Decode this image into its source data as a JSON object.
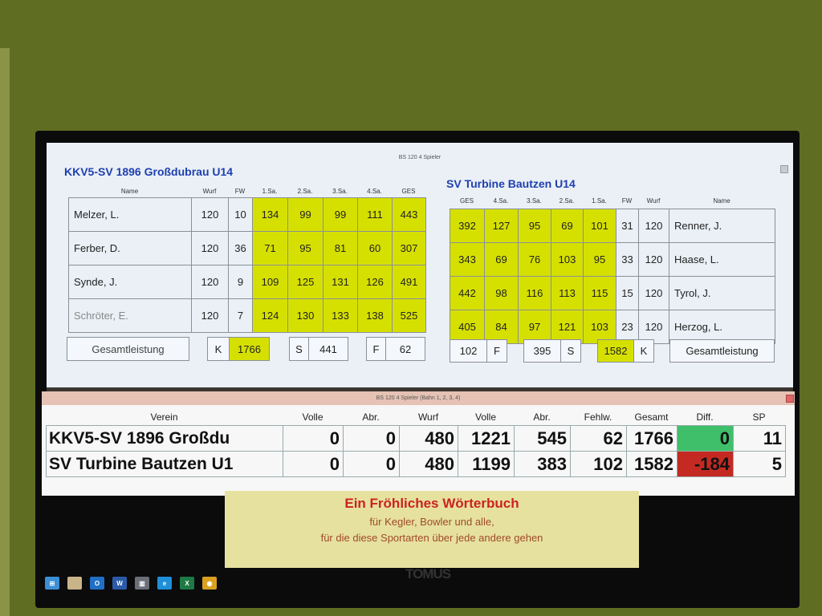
{
  "window_top": {
    "title": "BS 120 4 Spieler"
  },
  "home": {
    "team": "KKV5-SV 1896 Großdubrau U14",
    "headers": [
      "Name",
      "Wurf",
      "FW",
      "1.Sa.",
      "2.Sa.",
      "3.Sa.",
      "4.Sa.",
      "GES"
    ],
    "rows": [
      [
        "Melzer, L.",
        "120",
        "10",
        "134",
        "99",
        "99",
        "111",
        "443"
      ],
      [
        "Ferber, D.",
        "120",
        "36",
        "71",
        "95",
        "81",
        "60",
        "307"
      ],
      [
        "Synde, J.",
        "120",
        "9",
        "109",
        "125",
        "131",
        "126",
        "491"
      ],
      [
        "Schröter, E.",
        "120",
        "7",
        "124",
        "130",
        "133",
        "138",
        "525"
      ]
    ],
    "total_label": "Gesamtleistung",
    "k_label": "K",
    "k": "1766",
    "s_label": "S",
    "s": "441",
    "f_label": "F",
    "f": "62"
  },
  "away": {
    "team": "SV Turbine Bautzen U14",
    "headers": [
      "GES",
      "4.Sa.",
      "3.Sa.",
      "2.Sa.",
      "1.Sa.",
      "FW",
      "Wurf",
      "Name"
    ],
    "rows": [
      [
        "392",
        "127",
        "95",
        "69",
        "101",
        "31",
        "120",
        "Renner, J."
      ],
      [
        "343",
        "69",
        "76",
        "103",
        "95",
        "33",
        "120",
        "Haase, L."
      ],
      [
        "442",
        "98",
        "116",
        "113",
        "115",
        "15",
        "120",
        "Tyrol, J."
      ],
      [
        "405",
        "84",
        "97",
        "121",
        "103",
        "23",
        "120",
        "Herzog, L."
      ]
    ],
    "total_label": "Gesamtleistung",
    "k_label": "K",
    "k": "1582",
    "s_label": "S",
    "s": "395",
    "f_label": "F",
    "f": "102"
  },
  "window_bottom": {
    "title": "BS 120 4 Spieler (Bahn 1, 2, 3, 4)",
    "headers": [
      "Verein",
      "Volle",
      "Abr.",
      "Wurf",
      "Volle",
      "Abr.",
      "Fehlw.",
      "Gesamt",
      "Diff.",
      "SP"
    ],
    "rows": [
      [
        "KKV5-SV 1896 Großdu",
        "0",
        "0",
        "480",
        "1221",
        "545",
        "62",
        "1766",
        "0",
        "11"
      ],
      [
        "SV Turbine Bautzen U1",
        "0",
        "0",
        "480",
        "1199",
        "383",
        "102",
        "1582",
        "-184",
        "5"
      ]
    ],
    "diff_colors": [
      "#3fbf6a",
      "#c42a22"
    ]
  },
  "banner": {
    "title": "Ein Fröhliches Wörterbuch",
    "line1": "für Kegler, Bowler und alle,",
    "line2": "für die diese Sportarten über jede andere gehen",
    "logo": "TOMUS"
  },
  "taskbar": {
    "icons": [
      "windows-start-icon",
      "file-explorer-icon",
      "outlook-icon",
      "word-icon",
      "app-icon",
      "edge-icon",
      "excel-icon",
      "chrome-icon"
    ]
  },
  "colors": {
    "highlight": "#d6e000",
    "team_title": "#1f3fb0"
  }
}
